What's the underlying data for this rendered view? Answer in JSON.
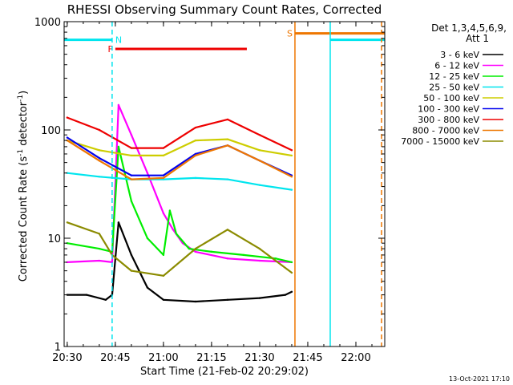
{
  "chart_data": {
    "type": "line",
    "title": "RHESSI Observing Summary Count Rates, Corrected",
    "xlabel": "Start Time (21-Feb-02 20:29:02)",
    "ylabel_main": "Corrected Count Rate (s",
    "ylabel_sup1": "-1",
    "ylabel_mid": " detector",
    "ylabel_sup2": "-1",
    "ylabel_end": ")",
    "y_scale": "log",
    "ylim": [
      1,
      1000
    ],
    "xlim": [
      "20:29:02",
      "22:09:00"
    ],
    "x_ticks": [
      "20:30",
      "20:45",
      "21:00",
      "21:15",
      "21:30",
      "21:45",
      "22:00"
    ],
    "y_ticks": [
      "1",
      "10",
      "100",
      "1000"
    ],
    "grid": false,
    "legend_position": "top-right",
    "legend_header_1": "Det 1,3,4,5,6,9,",
    "legend_header_2": "Att 1",
    "footer_date": "13-Oct-2021 17:10",
    "flags": [
      {
        "label": "N",
        "color": "#00e5ee",
        "x_start": "20:29:02",
        "x_end": "20:44:00",
        "level": 680
      },
      {
        "label": "F",
        "color": "#ee0000",
        "x_start": "20:45:00",
        "x_end": "21:26:00",
        "level": 560
      },
      {
        "label": "S",
        "color": "#ee7600",
        "x_start": "21:41:00",
        "x_end": "22:09:00",
        "level": 780
      },
      {
        "label": "",
        "color": "#00e5ee",
        "x_start": "21:52:00",
        "x_end": "22:09:00",
        "level": 680
      }
    ],
    "vlines": [
      {
        "x": "20:44:00",
        "color": "#00e5ee",
        "style": "dashed"
      },
      {
        "x": "21:41:00",
        "color": "#ee7600",
        "style": "solid"
      },
      {
        "x": "21:52:00",
        "color": "#00e5ee",
        "style": "solid"
      },
      {
        "x": "22:08:00",
        "color": "#ee7600",
        "style": "dashed"
      }
    ],
    "series": [
      {
        "name": "3 - 6 keV",
        "color": "#000000",
        "x": [
          "20:30",
          "20:36",
          "20:42",
          "20:44",
          "20:46",
          "20:50",
          "20:55",
          "21:00",
          "21:10",
          "21:20",
          "21:30",
          "21:38",
          "21:40"
        ],
        "y": [
          3.0,
          3.0,
          2.7,
          3.0,
          14,
          7,
          3.5,
          2.7,
          2.6,
          2.7,
          2.8,
          3.0,
          3.2
        ]
      },
      {
        "name": "6 - 12 keV",
        "color": "#ff00ff",
        "x": [
          "20:30",
          "20:40",
          "20:44",
          "20:46",
          "20:50",
          "20:55",
          "21:00",
          "21:03",
          "21:06",
          "21:10",
          "21:20",
          "21:30",
          "21:40"
        ],
        "y": [
          6.0,
          6.2,
          6.0,
          170,
          90,
          40,
          17,
          12,
          9,
          7.5,
          6.5,
          6.2,
          6.0
        ]
      },
      {
        "name": "12 - 25 keV",
        "color": "#00ee00",
        "x": [
          "20:30",
          "20:40",
          "20:44",
          "20:46",
          "20:50",
          "20:55",
          "21:00",
          "21:02",
          "21:04",
          "21:08",
          "21:15",
          "21:25",
          "21:35",
          "21:40"
        ],
        "y": [
          9.0,
          8.0,
          7.5,
          70,
          22,
          10,
          7.0,
          18,
          11,
          8.0,
          7.5,
          7.0,
          6.5,
          6.0
        ]
      },
      {
        "name": "25 - 50 keV",
        "color": "#00e5ee",
        "x": [
          "20:30",
          "20:40",
          "20:50",
          "21:00",
          "21:10",
          "21:20",
          "21:30",
          "21:40"
        ],
        "y": [
          40,
          37,
          35,
          35,
          36,
          35,
          31,
          28
        ]
      },
      {
        "name": "50 - 100 keV",
        "color": "#cdcd00",
        "x": [
          "20:30",
          "20:40",
          "20:50",
          "21:00",
          "21:10",
          "21:20",
          "21:30",
          "21:40"
        ],
        "y": [
          80,
          65,
          58,
          58,
          80,
          82,
          65,
          58
        ]
      },
      {
        "name": "100 - 300 keV",
        "color": "#0000ee",
        "x": [
          "20:30",
          "20:40",
          "20:50",
          "21:00",
          "21:10",
          "21:20",
          "21:30",
          "21:40"
        ],
        "y": [
          85,
          55,
          38,
          38,
          60,
          72,
          52,
          38
        ]
      },
      {
        "name": "300 - 800 keV",
        "color": "#ee0000",
        "x": [
          "20:30",
          "20:40",
          "20:50",
          "21:00",
          "21:10",
          "21:20",
          "21:30",
          "21:40"
        ],
        "y": [
          130,
          100,
          68,
          68,
          105,
          125,
          90,
          65
        ]
      },
      {
        "name": "800 - 7000 keV",
        "color": "#ee7600",
        "x": [
          "20:30",
          "20:40",
          "20:50",
          "21:00",
          "21:10",
          "21:20",
          "21:30",
          "21:40"
        ],
        "y": [
          80,
          52,
          35,
          36,
          58,
          72,
          52,
          37
        ]
      },
      {
        "name": "7000 - 15000 keV",
        "color": "#8b8b00",
        "x": [
          "20:30",
          "20:40",
          "20:44",
          "20:50",
          "21:00",
          "21:10",
          "21:20",
          "21:30",
          "21:40"
        ],
        "y": [
          14,
          11,
          7,
          5.0,
          4.5,
          8,
          12,
          8,
          4.8
        ]
      }
    ]
  }
}
